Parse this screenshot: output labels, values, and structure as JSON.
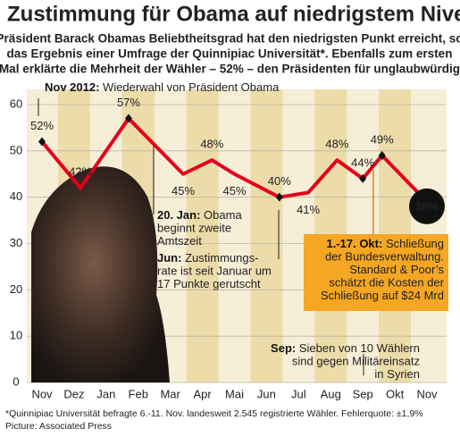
{
  "chart_data": {
    "type": "line",
    "title": "Zustimmung für Obama auf niedrigstem Niveau",
    "subtitle": [
      "Präsident Barack Obamas Beliebtheitsgrad hat den niedrigsten Punkt erreicht, so",
      "das Ergebnis einer Umfrage der Quinnipiac Universität*. Ebenfalls zum ersten",
      "Mal erklärte die Mehrheit der Wähler – 52% – den Präsidenten für unglaubwürdig"
    ],
    "categories": [
      "Nov",
      "Dez",
      "Jan",
      "Feb",
      "Mar",
      "Apr",
      "Mai",
      "Jun",
      "Jul",
      "Aug",
      "Sep",
      "Okt",
      "Nov"
    ],
    "x": [
      0,
      1.2,
      2.7,
      4.4,
      5.3,
      6.0,
      7.4,
      8.3,
      9.2,
      10.0,
      10.6,
      12.0
    ],
    "xlim": [
      0,
      12
    ],
    "series": [
      {
        "name": "Zustimmung",
        "color": "#e3001b",
        "values": [
          52,
          42,
          57,
          45,
          48,
          45,
          40,
          41,
          48,
          44,
          49,
          39
        ],
        "value_labels": [
          "52%",
          "42%",
          "57%",
          "45%",
          "48%",
          "45%",
          "40%",
          "41%",
          "48%",
          "44%",
          "49%",
          "39%"
        ]
      }
    ],
    "ylim": [
      0,
      60
    ],
    "yticks": [
      0,
      10,
      20,
      30,
      40,
      50,
      60
    ],
    "grid": true,
    "annotations": [
      {
        "head": "Nov 2012:",
        "lines": [
          "Wiederwahl von Präsident Obama"
        ]
      },
      {
        "head": "20. Jan:",
        "lines": [
          "Obama",
          "beginnt zweite",
          "Amtszeit"
        ]
      },
      {
        "head": "Jun:",
        "lines": [
          "Zustimmungs-",
          "rate ist seit Januar um",
          "17 Punkte gerutscht"
        ]
      },
      {
        "head": "1.-17. Okt:",
        "lines": [
          "Schließung",
          "der Bundesverwaltung.",
          "Standard & Poor’s",
          "schätzt die Kosten der",
          "Schließung auf $24 Mrd"
        ]
      },
      {
        "head": "Sep:",
        "lines": [
          "Sieben von 10 Wählern",
          "sind gegen Militäreinsatz",
          "in Syrien"
        ]
      }
    ],
    "footnote": [
      "*Quinnipiac Universität befragte 6.-11. Nov. landesweit 2.545 registrierte Wähler. Fehlerquote: ±1,9%",
      "Picture: Associated Press"
    ]
  }
}
